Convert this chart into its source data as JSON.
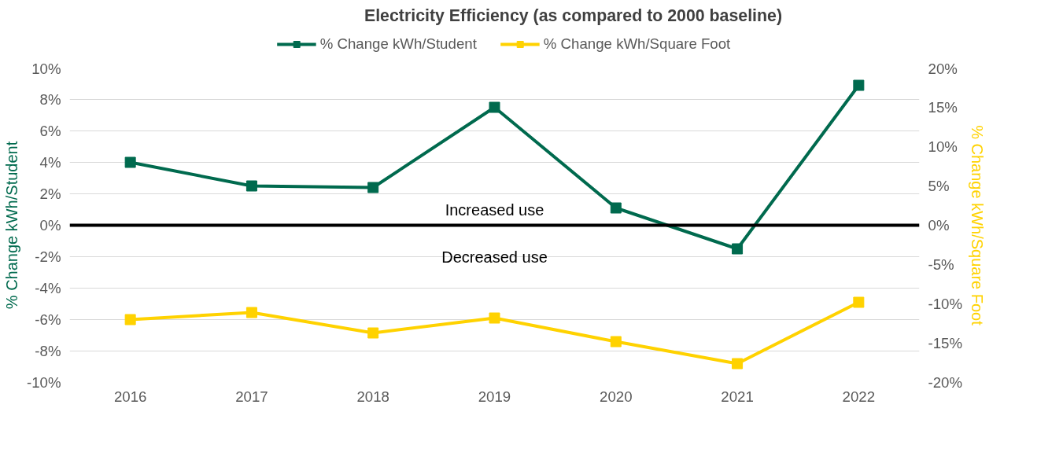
{
  "chart_data": {
    "type": "line",
    "title": "Electricity Efficiency (as compared to 2000 baseline)",
    "ylabel": "% Change kWh/Student",
    "y2label": "% Change kWh/Square Foot",
    "categories": [
      "2016",
      "2017",
      "2018",
      "2019",
      "2020",
      "2021",
      "2022"
    ],
    "series": [
      {
        "name": "% Change kWh/Student",
        "color": "#006a4e",
        "values": [
          4.0,
          2.5,
          2.4,
          7.5,
          1.1,
          -1.5,
          8.9
        ]
      },
      {
        "name": "% Change kWh/Square Foot",
        "color": "#ffd200",
        "axis": "y2",
        "values": [
          -12.0,
          -11.1,
          -13.7,
          -11.8,
          -14.8,
          -17.6,
          -9.8
        ]
      }
    ],
    "ylim": [
      -10,
      10
    ],
    "yticks": [
      {
        "value": -10,
        "label": "-10%"
      },
      {
        "value": -8,
        "label": "-8%"
      },
      {
        "value": -6,
        "label": "-6%"
      },
      {
        "value": -4,
        "label": "-4%"
      },
      {
        "value": -2,
        "label": "-2%"
      },
      {
        "value": 0,
        "label": "0%"
      },
      {
        "value": 2,
        "label": "2%"
      },
      {
        "value": 4,
        "label": "4%"
      },
      {
        "value": 6,
        "label": "6%"
      },
      {
        "value": 8,
        "label": "8%"
      },
      {
        "value": 10,
        "label": "10%"
      }
    ],
    "y2lim": [
      -20,
      20
    ],
    "y2ticks": [
      {
        "value": -20,
        "label": "-20%"
      },
      {
        "value": -15,
        "label": "-15%"
      },
      {
        "value": -10,
        "label": "-10%"
      },
      {
        "value": -5,
        "label": "-5%"
      },
      {
        "value": 0,
        "label": "0%"
      },
      {
        "value": 5,
        "label": "5%"
      },
      {
        "value": 10,
        "label": "10%"
      },
      {
        "value": 15,
        "label": "15%"
      },
      {
        "value": 20,
        "label": "20%"
      }
    ],
    "ref_lines": [
      {
        "axis": "y",
        "value": 0,
        "color": "#000000"
      }
    ],
    "annotations": [
      "Increased use",
      "Decreased use"
    ],
    "grid": "y",
    "legend": "top",
    "marker": "square",
    "line_style": "solid"
  }
}
